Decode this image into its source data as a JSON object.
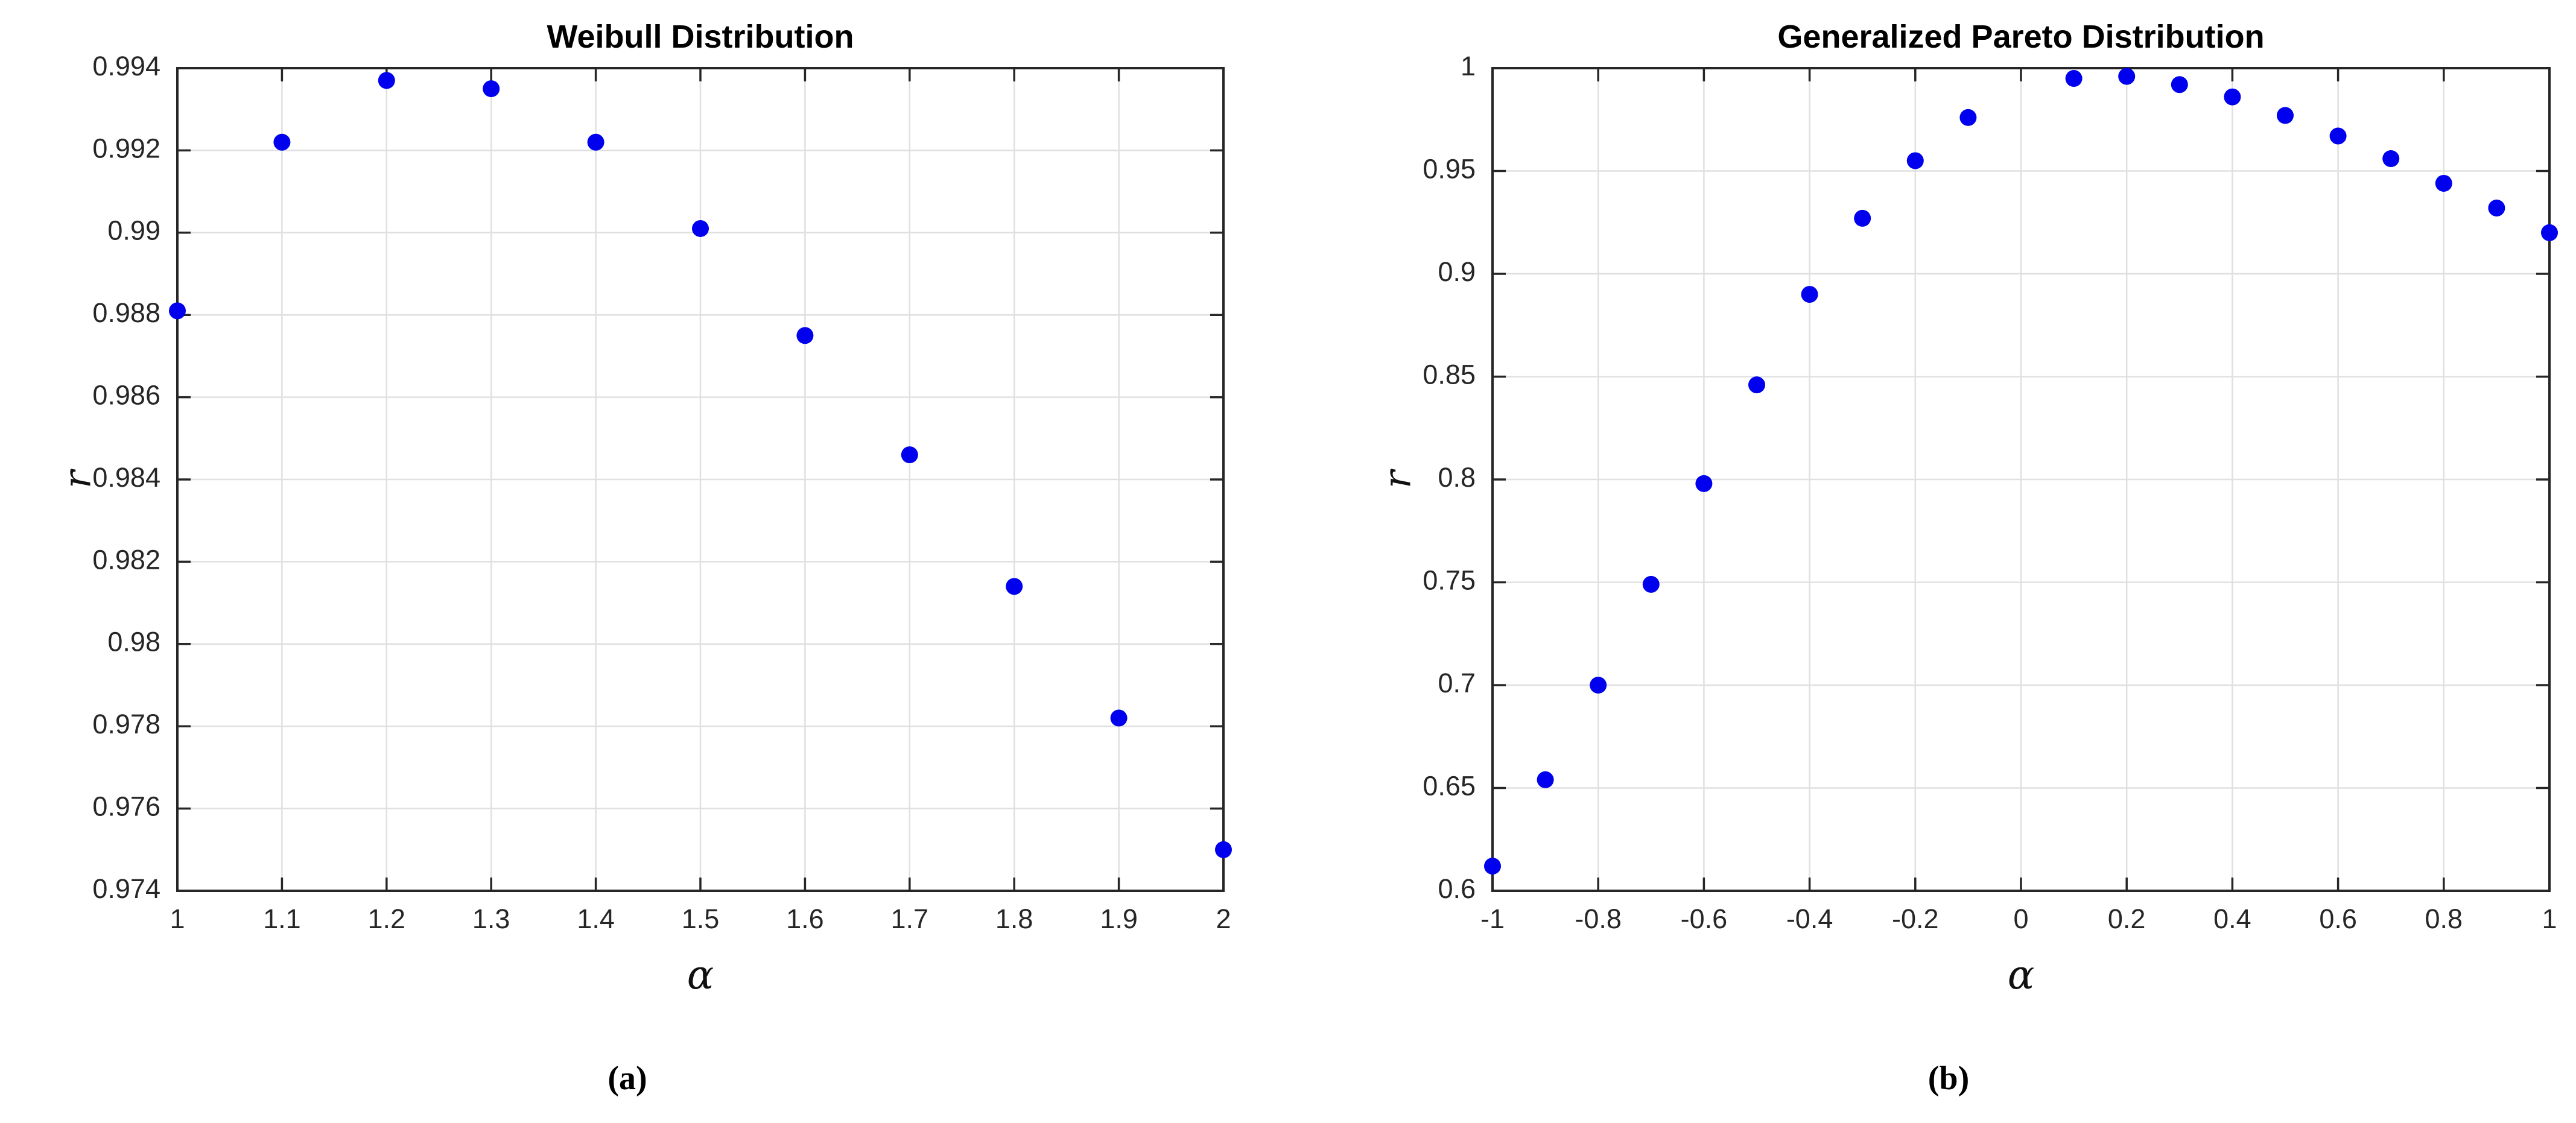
{
  "figure": {
    "caption_a": "(a)",
    "caption_b": "(b)"
  },
  "colors": {
    "marker": "#0000EE",
    "grid": "#E0E0E0",
    "axis": "#262626",
    "background": "#FFFFFF"
  },
  "chart_data": [
    {
      "type": "scatter",
      "title": "Weibull Distribution",
      "xlabel": "α",
      "ylabel": "r",
      "caption": "(a)",
      "x": [
        1.0,
        1.1,
        1.2,
        1.3,
        1.4,
        1.5,
        1.6,
        1.7,
        1.8,
        1.9,
        2.0
      ],
      "y": [
        0.9881,
        0.9922,
        0.9937,
        0.9935,
        0.9922,
        0.9901,
        0.9875,
        0.9846,
        0.9814,
        0.9782,
        0.975
      ],
      "xlim": [
        1,
        2
      ],
      "ylim": [
        0.974,
        0.994
      ],
      "xticks": [
        {
          "v": 1.0,
          "label": "1"
        },
        {
          "v": 1.1,
          "label": "1.1"
        },
        {
          "v": 1.2,
          "label": "1.2"
        },
        {
          "v": 1.3,
          "label": "1.3"
        },
        {
          "v": 1.4,
          "label": "1.4"
        },
        {
          "v": 1.5,
          "label": "1.5"
        },
        {
          "v": 1.6,
          "label": "1.6"
        },
        {
          "v": 1.7,
          "label": "1.7"
        },
        {
          "v": 1.8,
          "label": "1.8"
        },
        {
          "v": 1.9,
          "label": "1.9"
        },
        {
          "v": 2.0,
          "label": "2"
        }
      ],
      "yticks": [
        {
          "v": 0.974,
          "label": "0.974"
        },
        {
          "v": 0.976,
          "label": "0.976"
        },
        {
          "v": 0.978,
          "label": "0.978"
        },
        {
          "v": 0.98,
          "label": "0.98"
        },
        {
          "v": 0.982,
          "label": "0.982"
        },
        {
          "v": 0.984,
          "label": "0.984"
        },
        {
          "v": 0.986,
          "label": "0.986"
        },
        {
          "v": 0.988,
          "label": "0.988"
        },
        {
          "v": 0.99,
          "label": "0.99"
        },
        {
          "v": 0.992,
          "label": "0.992"
        },
        {
          "v": 0.994,
          "label": "0.994"
        }
      ],
      "grid": true,
      "legend": "none",
      "marker": {
        "shape": "circle",
        "size": 14
      }
    },
    {
      "type": "scatter",
      "title": "Generalized Pareto Distribution",
      "xlabel": "α",
      "ylabel": "r",
      "caption": "(b)",
      "x": [
        -1.0,
        -0.9,
        -0.8,
        -0.7,
        -0.6,
        -0.5,
        -0.4,
        -0.3,
        -0.2,
        -0.1,
        0.1,
        0.2,
        0.3,
        0.4,
        0.5,
        0.6,
        0.7,
        0.8,
        0.9,
        1.0
      ],
      "y": [
        0.612,
        0.654,
        0.7,
        0.749,
        0.798,
        0.846,
        0.89,
        0.927,
        0.955,
        0.976,
        0.995,
        0.996,
        0.992,
        0.986,
        0.977,
        0.967,
        0.956,
        0.944,
        0.932,
        0.92
      ],
      "xlim": [
        -1,
        1
      ],
      "ylim": [
        0.6,
        1.0
      ],
      "xticks": [
        {
          "v": -1.0,
          "label": "-1"
        },
        {
          "v": -0.8,
          "label": "-0.8"
        },
        {
          "v": -0.6,
          "label": "-0.6"
        },
        {
          "v": -0.4,
          "label": "-0.4"
        },
        {
          "v": -0.2,
          "label": "-0.2"
        },
        {
          "v": 0.0,
          "label": "0"
        },
        {
          "v": 0.2,
          "label": "0.2"
        },
        {
          "v": 0.4,
          "label": "0.4"
        },
        {
          "v": 0.6,
          "label": "0.6"
        },
        {
          "v": 0.8,
          "label": "0.8"
        },
        {
          "v": 1.0,
          "label": "1"
        }
      ],
      "yticks": [
        {
          "v": 0.6,
          "label": "0.6"
        },
        {
          "v": 0.65,
          "label": "0.65"
        },
        {
          "v": 0.7,
          "label": "0.7"
        },
        {
          "v": 0.75,
          "label": "0.75"
        },
        {
          "v": 0.8,
          "label": "0.8"
        },
        {
          "v": 0.85,
          "label": "0.85"
        },
        {
          "v": 0.9,
          "label": "0.9"
        },
        {
          "v": 0.95,
          "label": "0.95"
        },
        {
          "v": 1.0,
          "label": "1"
        }
      ],
      "grid": true,
      "legend": "none",
      "marker": {
        "shape": "circle",
        "size": 14
      }
    }
  ]
}
